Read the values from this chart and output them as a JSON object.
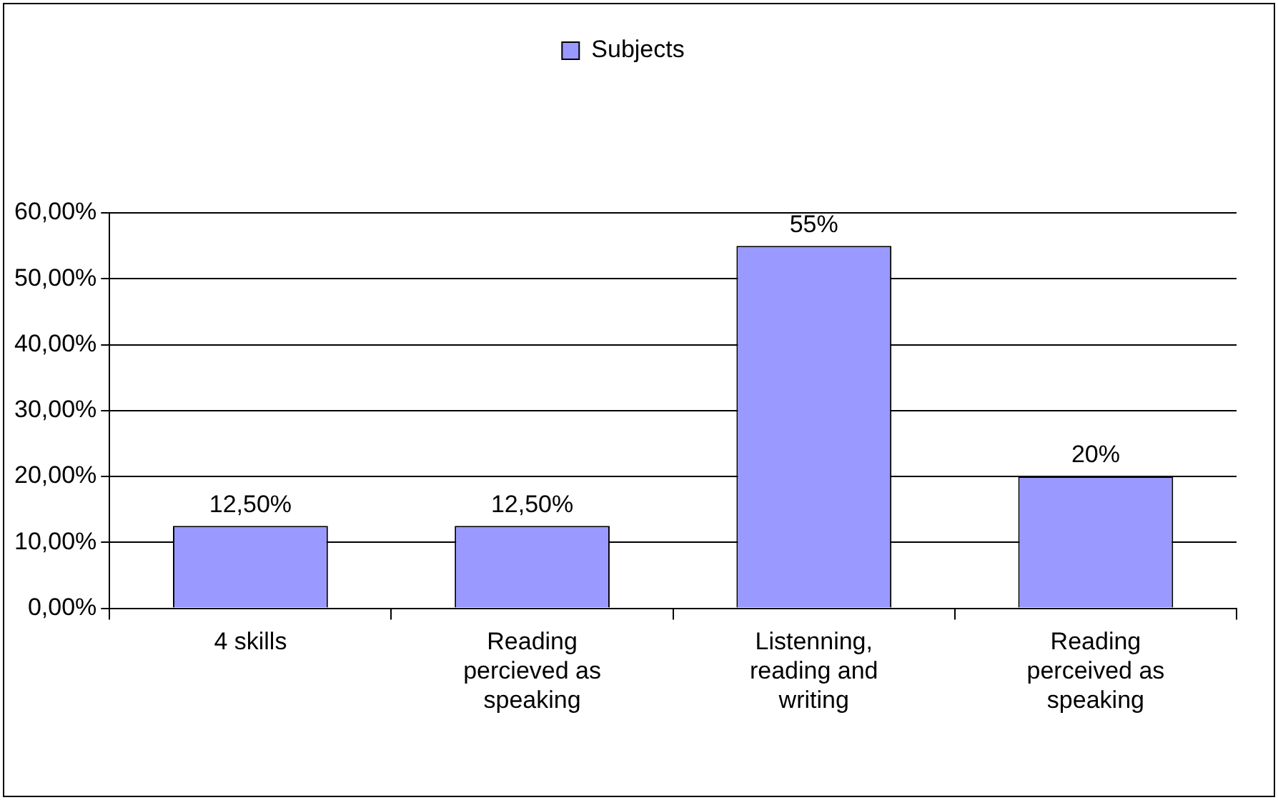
{
  "chart_data": {
    "type": "bar",
    "categories": [
      "4 skills",
      "Reading percieved as speaking",
      "Listenning, reading and writing",
      "Reading perceived as speaking"
    ],
    "series": [
      {
        "name": "Subjects",
        "color": "#9999ff",
        "values": [
          12.5,
          12.5,
          55,
          20
        ],
        "value_labels": [
          "12,50%",
          "12,50%",
          "55%",
          "20%"
        ]
      }
    ],
    "ylim": [
      0,
      60
    ],
    "yticks": [
      {
        "value": 0,
        "label": "0,00%"
      },
      {
        "value": 10,
        "label": "10,00%"
      },
      {
        "value": 20,
        "label": "20,00%"
      },
      {
        "value": 30,
        "label": "30,00%"
      },
      {
        "value": 40,
        "label": "40,00%"
      },
      {
        "value": 50,
        "label": "50,00%"
      },
      {
        "value": 60,
        "label": "60,00%"
      }
    ],
    "grid": "y",
    "legend": "top"
  }
}
